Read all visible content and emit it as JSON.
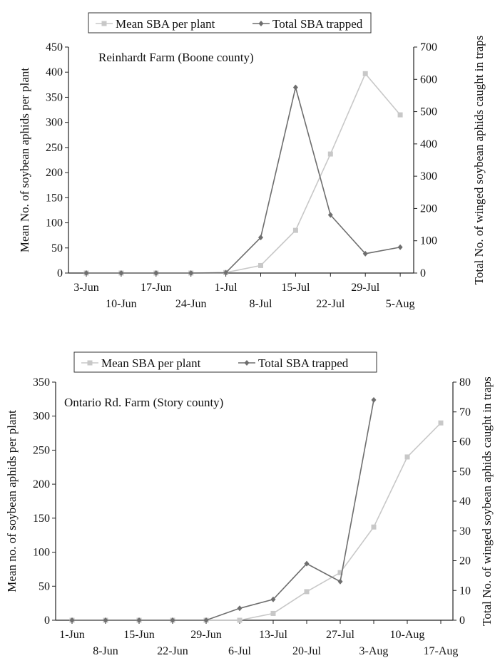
{
  "chart_data": [
    {
      "type": "line",
      "title": "Reinhardt Farm (Boone county)",
      "ylabel": "Mean No. of soybean aphids per plant",
      "y2label": "Total No. of winged soybean aphids caught in traps",
      "ylim": [
        0,
        450
      ],
      "y2lim": [
        0,
        700
      ],
      "yticks": [
        "0",
        "50",
        "100",
        "150",
        "200",
        "250",
        "300",
        "350",
        "400",
        "450"
      ],
      "y2ticks": [
        "0",
        "100",
        "200",
        "300",
        "400",
        "500",
        "600",
        "700"
      ],
      "xtick_labels": [
        "3-Jun",
        "10-Jun",
        "17-Jun",
        "24-Jun",
        "1-Jul",
        "8-Jul",
        "15-Jul",
        "22-Jul",
        "29-Jul",
        "5-Aug"
      ],
      "legend_position": "top-center",
      "series": [
        {
          "name": "Mean SBA per plant",
          "axis": "left",
          "color": "#c8c8c8",
          "marker": "square",
          "x": [
            "3-Jun",
            "10-Jun",
            "17-Jun",
            "24-Jun",
            "1-Jul",
            "8-Jul",
            "15-Jul",
            "22-Jul",
            "29-Jul",
            "5-Aug"
          ],
          "values": [
            0,
            0,
            0,
            0,
            1,
            15,
            85,
            237,
            397,
            315
          ]
        },
        {
          "name": "Total SBA trapped",
          "axis": "right",
          "color": "#6e6e6e",
          "marker": "diamond",
          "x": [
            "3-Jun",
            "10-Jun",
            "17-Jun",
            "24-Jun",
            "1-Jul",
            "8-Jul",
            "15-Jul",
            "22-Jul",
            "29-Jul",
            "5-Aug"
          ],
          "values": [
            0,
            0,
            0,
            0,
            1,
            110,
            575,
            180,
            60,
            80
          ]
        }
      ]
    },
    {
      "type": "line",
      "title": "Ontario Rd. Farm (Story county)",
      "ylabel": "Mean no. of soybean aphids per plant",
      "y2label": "Total No. of winged soybean aphids caught in traps",
      "ylim": [
        0,
        350
      ],
      "y2lim": [
        0,
        80
      ],
      "yticks": [
        "0",
        "50",
        "100",
        "150",
        "200",
        "250",
        "300",
        "350"
      ],
      "y2ticks": [
        "0",
        "10",
        "20",
        "30",
        "40",
        "50",
        "60",
        "70",
        "80"
      ],
      "xtick_labels": [
        "1-Jun",
        "8-Jun",
        "15-Jun",
        "22-Jun",
        "29-Jun",
        "6-Jul",
        "13-Jul",
        "20-Jul",
        "27-Jul",
        "3-Aug",
        "10-Aug",
        "17-Aug"
      ],
      "legend_position": "top-center",
      "series": [
        {
          "name": "Mean SBA per plant",
          "axis": "left",
          "color": "#c8c8c8",
          "marker": "square",
          "x": [
            "1-Jun",
            "8-Jun",
            "15-Jun",
            "22-Jun",
            "29-Jun",
            "6-Jul",
            "13-Jul",
            "20-Jul",
            "27-Jul",
            "3-Aug",
            "10-Aug",
            "17-Aug"
          ],
          "values": [
            0,
            0,
            0,
            0,
            0,
            0,
            10,
            42,
            70,
            137,
            240,
            290
          ]
        },
        {
          "name": "Total SBA trapped",
          "axis": "right",
          "color": "#6e6e6e",
          "marker": "diamond",
          "x": [
            "1-Jun",
            "8-Jun",
            "15-Jun",
            "22-Jun",
            "29-Jun",
            "6-Jul",
            "13-Jul",
            "20-Jul",
            "27-Jul",
            "3-Aug"
          ],
          "values": [
            0,
            0,
            0,
            0,
            0,
            4,
            7,
            19,
            13,
            74
          ]
        }
      ]
    }
  ]
}
